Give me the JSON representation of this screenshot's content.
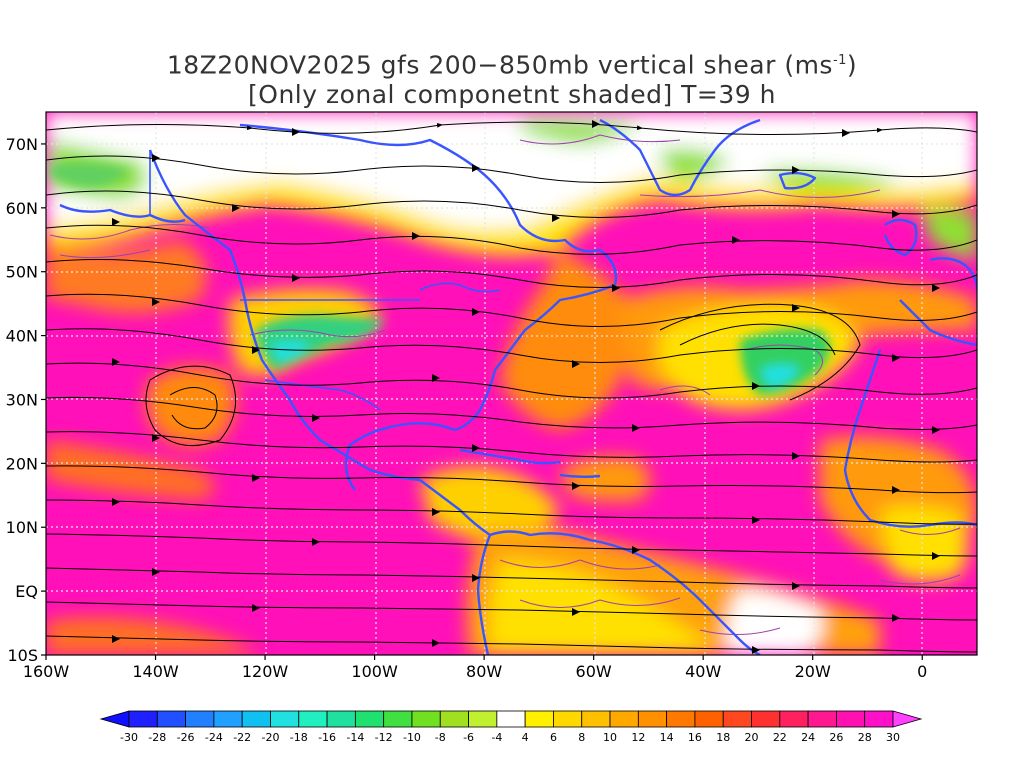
{
  "title": {
    "line1_prefix": "18Z20NOV2025 gfs 200−850mb vertical shear (ms",
    "line1_sup": "-1",
    "line1_suffix": ")",
    "line2": "[Only zonal componetnt shaded] T=39 h"
  },
  "map": {
    "lon_range": [
      -160,
      10
    ],
    "lat_range": [
      -10,
      75
    ],
    "lat_ticks": [
      {
        "value": 70,
        "label": "70N"
      },
      {
        "value": 60,
        "label": "60N"
      },
      {
        "value": 50,
        "label": "50N"
      },
      {
        "value": 40,
        "label": "40N"
      },
      {
        "value": 30,
        "label": "30N"
      },
      {
        "value": 20,
        "label": "20N"
      },
      {
        "value": 10,
        "label": "10N"
      },
      {
        "value": 0,
        "label": "EQ"
      },
      {
        "value": -10,
        "label": "10S"
      }
    ],
    "lon_ticks": [
      {
        "value": -160,
        "label": "160W"
      },
      {
        "value": -140,
        "label": "140W"
      },
      {
        "value": -120,
        "label": "120W"
      },
      {
        "value": -100,
        "label": "100W"
      },
      {
        "value": -80,
        "label": "80W"
      },
      {
        "value": -60,
        "label": "60W"
      },
      {
        "value": -40,
        "label": "40W"
      },
      {
        "value": -20,
        "label": "20W"
      },
      {
        "value": 0,
        "label": "0"
      }
    ],
    "coastline_color": "#3a55ff",
    "contour_color": "#b04ab8",
    "gridline_color": "#dddddd"
  },
  "colorbar": {
    "labels": [
      "-30",
      "-28",
      "-26",
      "-24",
      "-22",
      "-20",
      "-18",
      "-16",
      "-14",
      "-12",
      "-10",
      "-8",
      "-6",
      "-4",
      "4",
      "6",
      "8",
      "10",
      "12",
      "14",
      "16",
      "18",
      "20",
      "22",
      "24",
      "26",
      "28",
      "30"
    ],
    "colors": [
      "#2020ff",
      "#2050ff",
      "#2080ff",
      "#20a0ff",
      "#10c0f0",
      "#20e0e0",
      "#20f0c0",
      "#20e0a0",
      "#20e070",
      "#40e040",
      "#70e020",
      "#a0e020",
      "#c0f030",
      "#ffffff",
      "#fff000",
      "#ffd800",
      "#ffc000",
      "#ffa800",
      "#ff9000",
      "#ff7800",
      "#ff6000",
      "#ff4820",
      "#ff3030",
      "#ff2060",
      "#ff1890",
      "#ff10b0",
      "#ff10c8"
    ],
    "left_arrow_color": "#1010ff",
    "right_arrow_color": "#ff40ff"
  }
}
